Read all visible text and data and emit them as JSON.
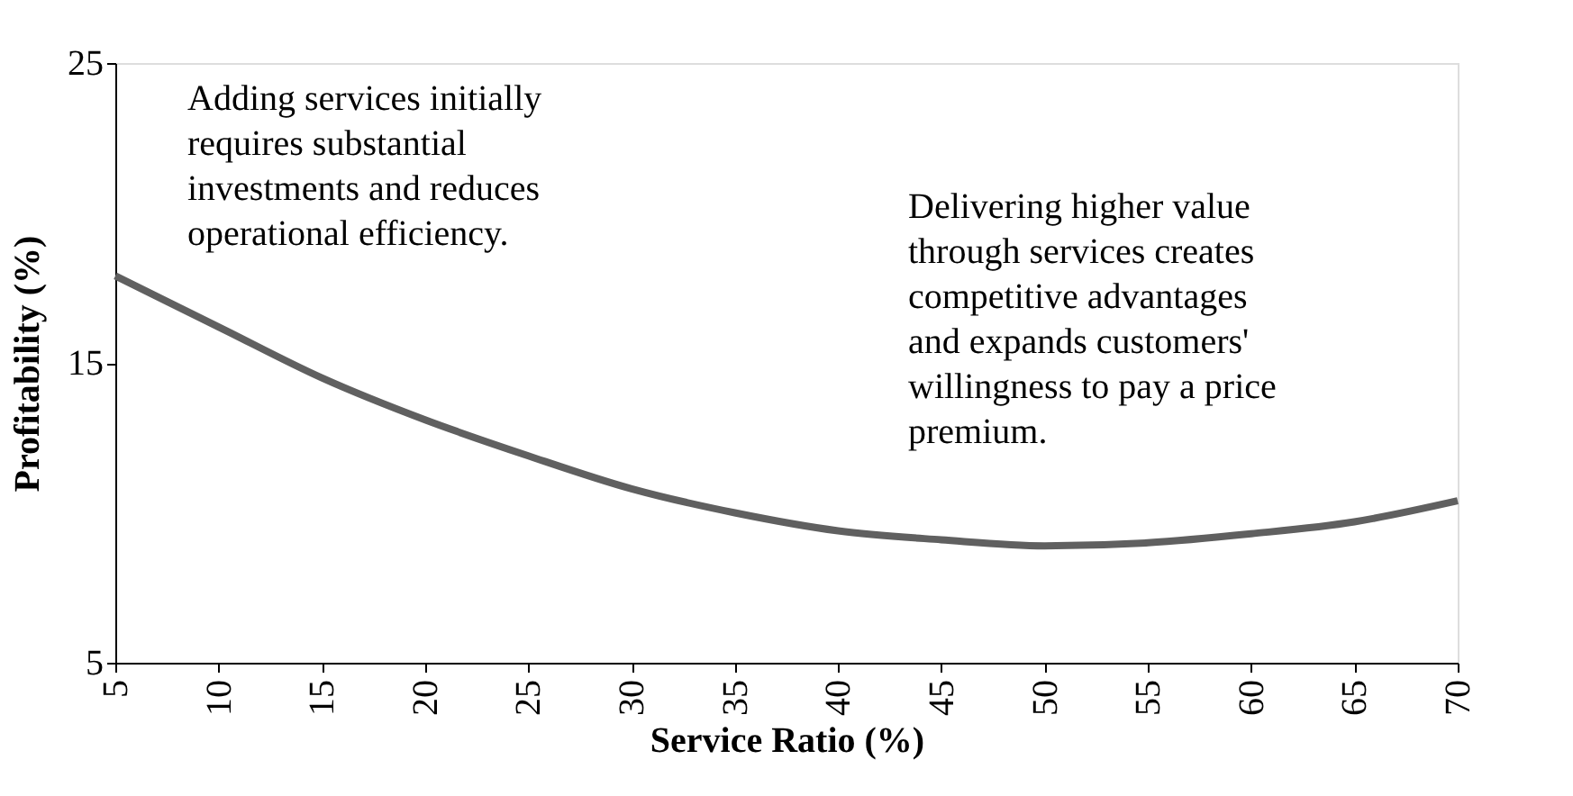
{
  "chart_data": {
    "type": "line",
    "xlabel": "Service Ratio (%)",
    "ylabel": "Profitability (%)",
    "x": [
      5,
      10,
      15,
      20,
      25,
      30,
      35,
      40,
      45,
      50,
      55,
      60,
      65,
      70
    ],
    "series": [
      {
        "color": "#606060",
        "values": [
          17.9,
          16.2,
          14.5,
          13.1,
          11.9,
          10.8,
          10.0,
          9.4,
          9.1,
          8.9,
          9.0,
          9.3,
          9.7,
          10.4
        ]
      }
    ],
    "xlim": [
      5,
      70
    ],
    "xticks": [
      5,
      10,
      15,
      20,
      25,
      30,
      35,
      40,
      45,
      50,
      55,
      60,
      65,
      70
    ],
    "ylim": [
      5,
      25
    ],
    "yticks": [
      5,
      15,
      25
    ],
    "grid": false,
    "legend": false,
    "marker": "none",
    "line_style": "solid",
    "annotations": [
      "Adding services initially\nrequires substantial\ninvestments and reduces\noperational efficiency.",
      "Delivering higher value\nthrough services creates\ncompetitive advantages\nand expands customers'\nwillingness to pay a price\npremium."
    ]
  }
}
